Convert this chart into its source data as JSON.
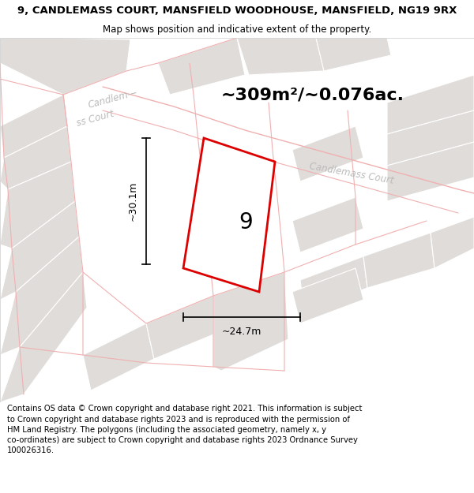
{
  "title_line1": "9, CANDLEMASS COURT, MANSFIELD WOODHOUSE, MANSFIELD, NG19 9RX",
  "title_line2": "Map shows position and indicative extent of the property.",
  "footer_text": "Contains OS data © Crown copyright and database right 2021. This information is subject\nto Crown copyright and database rights 2023 and is reproduced with the permission of\nHM Land Registry. The polygons (including the associated geometry, namely x, y\nco-ordinates) are subject to Crown copyright and database rights 2023 Ordnance Survey\n100026316.",
  "area_text": "~309m²/~0.076ac.",
  "plot_number": "9",
  "dim_width": "~24.7m",
  "dim_height": "~30.1m",
  "street_label_upper": "Candlem—\nss Court",
  "street_label_lower": "Candlemass Court",
  "bg_color": "#ffffff",
  "map_bg": "#f8f6f5",
  "grey_fill": "#e0dcda",
  "grey_edge": "#ffffff",
  "road_color": "#f0b0b0",
  "plot_edge": "#dd0000",
  "plot_fill": "#ffffff"
}
